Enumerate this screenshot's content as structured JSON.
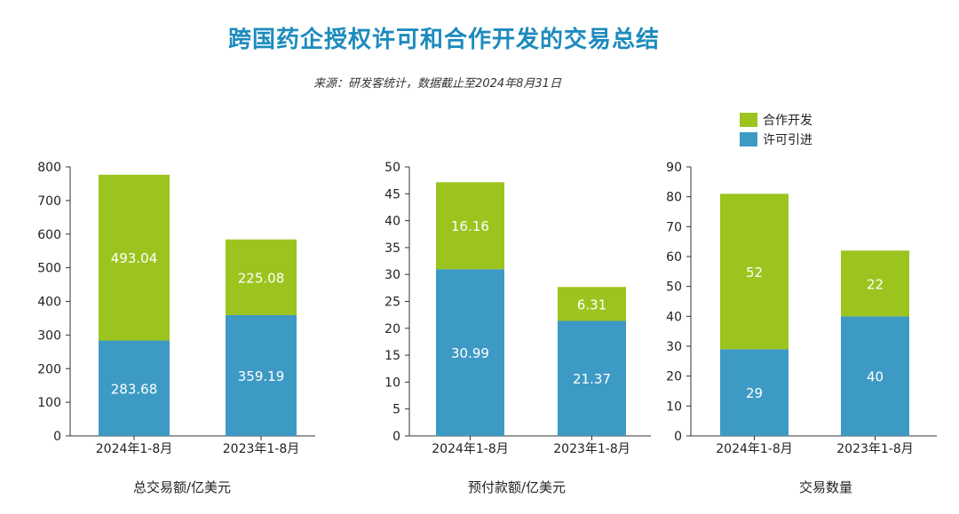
{
  "title": "跨国药企授权许可和合作开发的交易总结",
  "subtitle": "来源：研发客统计，数据截止至2024年8月31日",
  "colors": {
    "license": "#3d9ac4",
    "codev": "#9cc41f"
  },
  "legend": {
    "codev": "合作开发",
    "license": "许可引进"
  },
  "chart_data": [
    {
      "type": "bar",
      "stacked": true,
      "categories": [
        "2024年1-8月",
        "2023年1-8月"
      ],
      "series": [
        {
          "name": "许可引进",
          "values": [
            283.68,
            359.19
          ]
        },
        {
          "name": "合作开发",
          "values": [
            493.04,
            225.08
          ]
        }
      ],
      "value_labels": [
        [
          "283.68",
          "359.19"
        ],
        [
          "493.04",
          "225.08"
        ]
      ],
      "ylim": [
        0,
        800
      ],
      "yticks": [
        0,
        100,
        200,
        300,
        400,
        500,
        600,
        700,
        800
      ],
      "xlabel": "总交易额/亿美元"
    },
    {
      "type": "bar",
      "stacked": true,
      "categories": [
        "2024年1-8月",
        "2023年1-8月"
      ],
      "series": [
        {
          "name": "许可引进",
          "values": [
            30.99,
            21.37
          ]
        },
        {
          "name": "合作开发",
          "values": [
            16.16,
            6.31
          ]
        }
      ],
      "value_labels": [
        [
          "30.99",
          "21.37"
        ],
        [
          "16.16",
          "6.31"
        ]
      ],
      "ylim": [
        0,
        50
      ],
      "yticks": [
        0,
        5,
        10,
        15,
        20,
        25,
        30,
        35,
        40,
        45,
        50
      ],
      "xlabel": "预付款额/亿美元"
    },
    {
      "type": "bar",
      "stacked": true,
      "categories": [
        "2024年1-8月",
        "2023年1-8月"
      ],
      "series": [
        {
          "name": "许可引进",
          "values": [
            29,
            40
          ]
        },
        {
          "name": "合作开发",
          "values": [
            52,
            22
          ]
        }
      ],
      "value_labels": [
        [
          "29",
          "40"
        ],
        [
          "52",
          "22"
        ]
      ],
      "ylim": [
        0,
        90
      ],
      "yticks": [
        0,
        10,
        20,
        30,
        40,
        50,
        60,
        70,
        80,
        90
      ],
      "xlabel": "交易数量"
    }
  ]
}
